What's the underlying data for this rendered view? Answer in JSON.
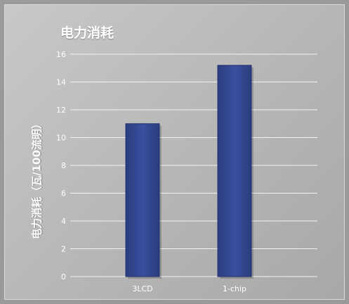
{
  "chart_data": {
    "type": "bar",
    "title": "电力消耗",
    "xlabel": "",
    "ylabel": "电力消耗（瓦/100流明）",
    "categories": [
      "3LCD",
      "1-chip"
    ],
    "values": [
      11,
      15.2
    ],
    "ylim": [
      0,
      16
    ],
    "yticks": [
      0,
      2,
      4,
      6,
      8,
      10,
      12,
      14,
      16
    ],
    "grid": true,
    "bar_color": "#354a94",
    "background_color": "#bdbdbd"
  }
}
